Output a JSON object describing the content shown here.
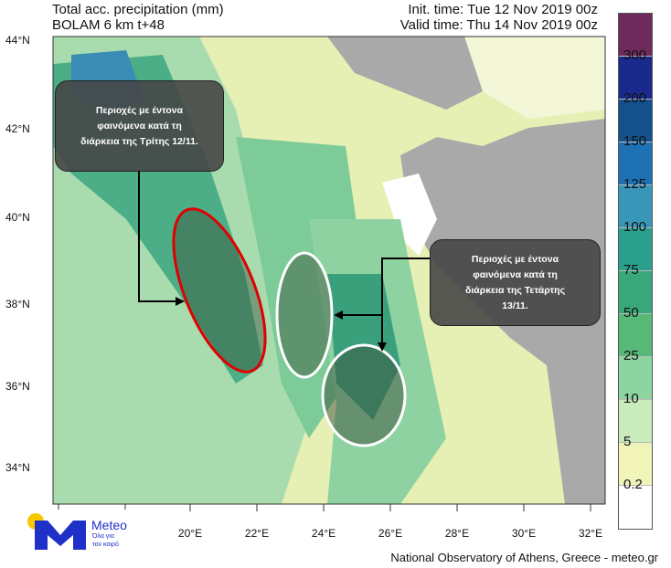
{
  "header": {
    "title": "Total acc. precipitation (mm)",
    "model": "BOLAM 6 km t+48",
    "init_time": "Init. time: Tue 12 Nov 2019 00z",
    "valid_time": "Valid time: Thu 14 Nov 2019 00z"
  },
  "axes": {
    "lat": [
      "44°N",
      "42°N",
      "40°N",
      "38°N",
      "36°N",
      "34°N"
    ],
    "lon": [
      "20°E",
      "22°E",
      "24°E",
      "26°E",
      "28°E",
      "30°E",
      "32°E"
    ]
  },
  "colorbar": {
    "labels": [
      "300",
      "200",
      "150",
      "125",
      "100",
      "75",
      "50",
      "25",
      "10",
      "5",
      "0.2"
    ],
    "colors": [
      "#6e2a5a",
      "#1a2a8c",
      "#14508c",
      "#1e72b4",
      "#3896b8",
      "#2aa08c",
      "#38a87a",
      "#58b878",
      "#8cd4a0",
      "#c8ecbc",
      "#f0f4b8",
      "#ffffff"
    ]
  },
  "annotations": {
    "left": [
      "Περιοχές με έντονα",
      "φαινόμενα κατά τη",
      "διάρκεια της Τρίτης 12/11."
    ],
    "right": [
      "Περιοχές με έντονα",
      "φαινόμενα κατά τη",
      "διάρκεια της Τετάρτης",
      "13/11."
    ]
  },
  "logo": {
    "name": "Meteo",
    "tagline1": "Όλα για",
    "tagline2": "τον καιρό"
  },
  "credit": "National Observatory of Athens, Greece - meteo.gr"
}
